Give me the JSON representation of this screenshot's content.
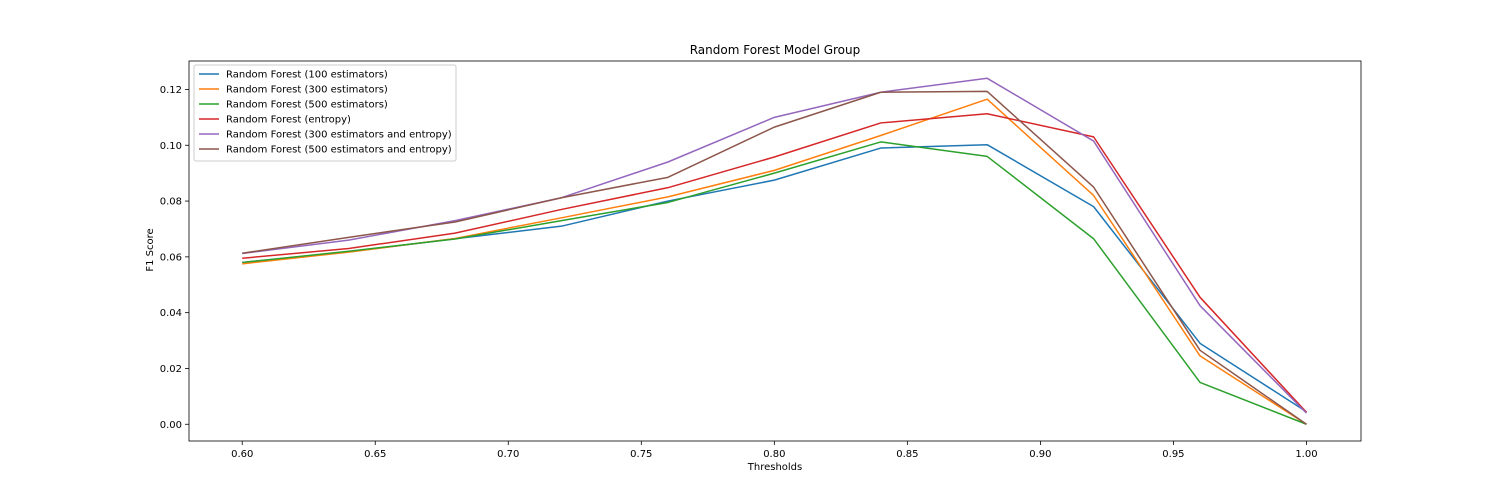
{
  "chart_data": {
    "type": "line",
    "title": "Random Forest Model Group",
    "xlabel": "Thresholds",
    "ylabel": "F1 Score",
    "xlim": [
      0.58,
      1.0205
    ],
    "ylim": [
      -0.006,
      0.1302
    ],
    "xticks": [
      0.6,
      0.65,
      0.7,
      0.75,
      0.8,
      0.85,
      0.9,
      0.95,
      1.0
    ],
    "yticks": [
      0.0,
      0.02,
      0.04,
      0.06,
      0.08,
      0.1,
      0.12
    ],
    "grid": false,
    "legend_position": "top-left",
    "x": [
      0.6,
      0.64,
      0.68,
      0.72,
      0.76,
      0.8,
      0.84,
      0.88,
      0.92,
      0.96,
      1.0
    ],
    "series": [
      {
        "name": "Random Forest (100 estimators)",
        "color": "#1f77b4",
        "values": [
          0.058,
          0.0618,
          0.0665,
          0.071,
          0.08,
          0.0875,
          0.099,
          0.1002,
          0.078,
          0.029,
          0.0045
        ]
      },
      {
        "name": "Random Forest (300 estimators)",
        "color": "#ff7f0e",
        "values": [
          0.0575,
          0.0617,
          0.0666,
          0.074,
          0.0815,
          0.091,
          0.1035,
          0.1165,
          0.082,
          0.0245,
          0.0
        ]
      },
      {
        "name": "Random Forest (500 estimators)",
        "color": "#2ca02c",
        "values": [
          0.058,
          0.062,
          0.0664,
          0.073,
          0.0795,
          0.09,
          0.1012,
          0.096,
          0.0665,
          0.015,
          0.0
        ]
      },
      {
        "name": "Random Forest (entropy)",
        "color": "#d62728",
        "values": [
          0.0595,
          0.063,
          0.0685,
          0.077,
          0.0848,
          0.0958,
          0.108,
          0.1113,
          0.103,
          0.0455,
          0.0043
        ]
      },
      {
        "name": "Random Forest (300 estimators and entropy)",
        "color": "#9467bd",
        "values": [
          0.0612,
          0.066,
          0.073,
          0.0812,
          0.094,
          0.11,
          0.119,
          0.124,
          0.1015,
          0.0425,
          0.004
        ]
      },
      {
        "name": "Random Forest (500 estimators and entropy)",
        "color": "#8c564b",
        "values": [
          0.0613,
          0.067,
          0.0725,
          0.0812,
          0.0885,
          0.1065,
          0.119,
          0.1193,
          0.085,
          0.0265,
          0.0
        ]
      }
    ]
  }
}
